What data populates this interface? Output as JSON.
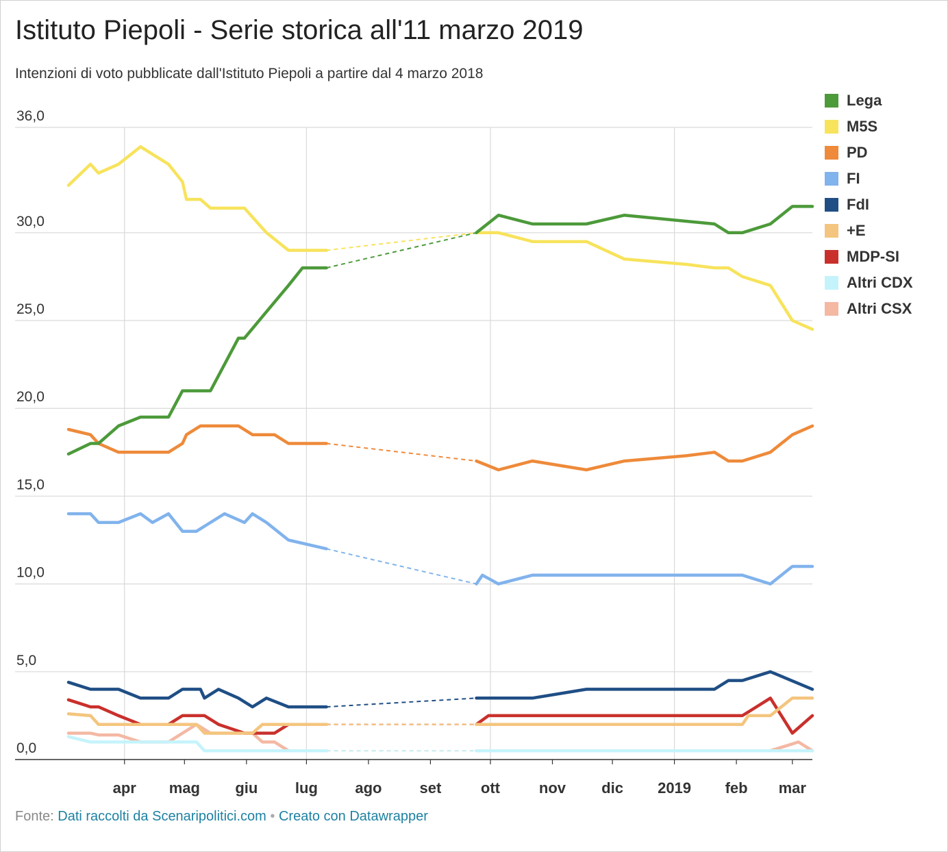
{
  "title": "Istituto Piepoli - Serie storica all'11 marzo 2019",
  "subtitle": "Intenzioni di voto pubblicate dall'Istituto Piepoli a partire dal 4 marzo 2018",
  "footer": {
    "source_prefix": "Fonte:",
    "source_link": "Dati raccolti da Scenaripolitici.com",
    "separator": "•",
    "credit_link": "Creato con Datawrapper"
  },
  "chart_data": {
    "type": "line",
    "title": "Istituto Piepoli - Serie storica all'11 marzo 2019",
    "subtitle": "Intenzioni di voto pubblicate dall'Istituto Piepoli a partire dal 4 marzo 2018",
    "xlabel": "",
    "ylabel": "",
    "ylim": [
      0,
      36
    ],
    "y_ticks": [
      0,
      5,
      10,
      15,
      20,
      25,
      30,
      36
    ],
    "y_tick_labels": [
      "0,0",
      "5,0",
      "10,0",
      "15,0",
      "20,0",
      "25,0",
      "30,0",
      "36,0"
    ],
    "x_range": [
      "2018-03-04",
      "2019-03-11"
    ],
    "x_ticks": [
      {
        "date": "2018-04-01",
        "label": "apr"
      },
      {
        "date": "2018-05-01",
        "label": "mag"
      },
      {
        "date": "2018-06-01",
        "label": "giu"
      },
      {
        "date": "2018-07-01",
        "label": "lug"
      },
      {
        "date": "2018-08-01",
        "label": "ago"
      },
      {
        "date": "2018-09-01",
        "label": "set"
      },
      {
        "date": "2018-10-01",
        "label": "ott"
      },
      {
        "date": "2018-11-01",
        "label": "nov"
      },
      {
        "date": "2018-12-01",
        "label": "dic"
      },
      {
        "date": "2019-01-01",
        "label": "2019"
      },
      {
        "date": "2019-02-01",
        "label": "feb"
      },
      {
        "date": "2019-03-01",
        "label": "mar"
      }
    ],
    "vertical_grid_dates": [
      "2018-04-01",
      "2018-07-01",
      "2018-10-01",
      "2019-01-01"
    ],
    "gap": {
      "from": "2018-07-11",
      "to": "2018-09-24",
      "style": "dashed"
    },
    "grid": true,
    "legend_position": "right",
    "series": [
      {
        "name": "Lega",
        "color": "#4c9a3a",
        "points": [
          [
            "2018-03-04",
            17.4
          ],
          [
            "2018-03-15",
            18
          ],
          [
            "2018-03-19",
            18
          ],
          [
            "2018-03-29",
            19
          ],
          [
            "2018-04-09",
            19.5
          ],
          [
            "2018-04-23",
            19.5
          ],
          [
            "2018-04-30",
            21
          ],
          [
            "2018-05-14",
            21
          ],
          [
            "2018-05-28",
            24
          ],
          [
            "2018-05-31",
            24
          ],
          [
            "2018-06-11",
            25.5
          ],
          [
            "2018-06-22",
            27
          ],
          [
            "2018-06-29",
            28
          ],
          [
            "2018-07-11",
            28
          ],
          [
            "2018-09-24",
            30
          ],
          [
            "2018-10-05",
            31
          ],
          [
            "2018-10-22",
            30.5
          ],
          [
            "2018-11-18",
            30.5
          ],
          [
            "2018-12-07",
            31
          ],
          [
            "2019-01-21",
            30.5
          ],
          [
            "2019-01-28",
            30
          ],
          [
            "2019-02-04",
            30
          ],
          [
            "2019-02-18",
            30.5
          ],
          [
            "2019-03-01",
            31.5
          ],
          [
            "2019-03-11",
            31.5
          ]
        ]
      },
      {
        "name": "M5S",
        "color": "#f7e35c",
        "points": [
          [
            "2018-03-04",
            32.7
          ],
          [
            "2018-03-15",
            33.9
          ],
          [
            "2018-03-19",
            33.4
          ],
          [
            "2018-03-29",
            33.9
          ],
          [
            "2018-04-09",
            34.9
          ],
          [
            "2018-04-23",
            33.9
          ],
          [
            "2018-04-30",
            32.9
          ],
          [
            "2018-05-02",
            31.9
          ],
          [
            "2018-05-09",
            31.9
          ],
          [
            "2018-05-14",
            31.4
          ],
          [
            "2018-05-31",
            31.4
          ],
          [
            "2018-06-11",
            30
          ],
          [
            "2018-06-22",
            29
          ],
          [
            "2018-07-11",
            29
          ],
          [
            "2018-09-24",
            30
          ],
          [
            "2018-10-05",
            30
          ],
          [
            "2018-10-22",
            29.5
          ],
          [
            "2018-11-18",
            29.5
          ],
          [
            "2018-12-07",
            28.5
          ],
          [
            "2019-01-07",
            28.2
          ],
          [
            "2019-01-21",
            28
          ],
          [
            "2019-01-28",
            28
          ],
          [
            "2019-02-04",
            27.5
          ],
          [
            "2019-02-18",
            27
          ],
          [
            "2019-03-01",
            25
          ],
          [
            "2019-03-11",
            24.5
          ]
        ]
      },
      {
        "name": "PD",
        "color": "#ee8a3a",
        "points": [
          [
            "2018-03-04",
            18.8
          ],
          [
            "2018-03-15",
            18.5
          ],
          [
            "2018-03-19",
            18
          ],
          [
            "2018-03-29",
            17.5
          ],
          [
            "2018-04-23",
            17.5
          ],
          [
            "2018-04-30",
            18
          ],
          [
            "2018-05-02",
            18.5
          ],
          [
            "2018-05-09",
            19
          ],
          [
            "2018-05-28",
            19
          ],
          [
            "2018-06-04",
            18.5
          ],
          [
            "2018-06-15",
            18.5
          ],
          [
            "2018-06-22",
            18
          ],
          [
            "2018-07-11",
            18
          ],
          [
            "2018-09-24",
            17
          ],
          [
            "2018-10-05",
            16.5
          ],
          [
            "2018-10-22",
            17
          ],
          [
            "2018-11-18",
            16.5
          ],
          [
            "2018-12-07",
            17
          ],
          [
            "2019-01-07",
            17.3
          ],
          [
            "2019-01-21",
            17.5
          ],
          [
            "2019-01-28",
            17
          ],
          [
            "2019-02-04",
            17
          ],
          [
            "2019-02-18",
            17.5
          ],
          [
            "2019-03-01",
            18.5
          ],
          [
            "2019-03-11",
            19
          ]
        ]
      },
      {
        "name": "FI",
        "color": "#81b3ec",
        "points": [
          [
            "2018-03-04",
            14
          ],
          [
            "2018-03-15",
            14
          ],
          [
            "2018-03-19",
            13.5
          ],
          [
            "2018-03-29",
            13.5
          ],
          [
            "2018-04-09",
            14
          ],
          [
            "2018-04-15",
            13.5
          ],
          [
            "2018-04-23",
            14
          ],
          [
            "2018-04-30",
            13
          ],
          [
            "2018-05-07",
            13
          ],
          [
            "2018-05-14",
            13.5
          ],
          [
            "2018-05-21",
            14
          ],
          [
            "2018-05-31",
            13.5
          ],
          [
            "2018-06-04",
            14
          ],
          [
            "2018-06-11",
            13.5
          ],
          [
            "2018-06-22",
            12.5
          ],
          [
            "2018-07-11",
            12
          ],
          [
            "2018-09-24",
            10
          ],
          [
            "2018-09-27",
            10.5
          ],
          [
            "2018-10-05",
            10
          ],
          [
            "2018-10-22",
            10.5
          ],
          [
            "2019-02-04",
            10.5
          ],
          [
            "2019-02-18",
            10
          ],
          [
            "2019-03-01",
            11
          ],
          [
            "2019-03-11",
            11
          ]
        ]
      },
      {
        "name": "FdI",
        "color": "#1f4e85",
        "points": [
          [
            "2018-03-04",
            4.4
          ],
          [
            "2018-03-15",
            4
          ],
          [
            "2018-03-29",
            4
          ],
          [
            "2018-04-09",
            3.5
          ],
          [
            "2018-04-23",
            3.5
          ],
          [
            "2018-04-30",
            4
          ],
          [
            "2018-05-09",
            4
          ],
          [
            "2018-05-11",
            3.5
          ],
          [
            "2018-05-18",
            4
          ],
          [
            "2018-05-28",
            3.5
          ],
          [
            "2018-06-04",
            3
          ],
          [
            "2018-06-11",
            3.5
          ],
          [
            "2018-06-22",
            3
          ],
          [
            "2018-07-11",
            3
          ],
          [
            "2018-09-24",
            3.5
          ],
          [
            "2018-10-22",
            3.5
          ],
          [
            "2018-11-18",
            4
          ],
          [
            "2019-01-21",
            4
          ],
          [
            "2019-01-28",
            4.5
          ],
          [
            "2019-02-04",
            4.5
          ],
          [
            "2019-02-18",
            5
          ],
          [
            "2019-03-11",
            4
          ]
        ]
      },
      {
        "name": "+E",
        "color": "#f4c57e",
        "points": [
          [
            "2018-03-04",
            2.6
          ],
          [
            "2018-03-15",
            2.5
          ],
          [
            "2018-03-19",
            2
          ],
          [
            "2018-04-23",
            2
          ],
          [
            "2018-05-07",
            2
          ],
          [
            "2018-05-11",
            1.5
          ],
          [
            "2018-06-04",
            1.5
          ],
          [
            "2018-06-09",
            2
          ],
          [
            "2018-07-11",
            2
          ],
          [
            "2018-09-24",
            2
          ],
          [
            "2019-02-04",
            2
          ],
          [
            "2019-02-07",
            2.5
          ],
          [
            "2019-02-18",
            2.5
          ],
          [
            "2019-03-01",
            3.5
          ],
          [
            "2019-03-11",
            3.5
          ]
        ]
      },
      {
        "name": "MDP-SI",
        "color": "#c9302c",
        "points": [
          [
            "2018-03-04",
            3.4
          ],
          [
            "2018-03-15",
            3
          ],
          [
            "2018-03-19",
            3
          ],
          [
            "2018-03-29",
            2.5
          ],
          [
            "2018-04-09",
            2
          ],
          [
            "2018-04-23",
            2
          ],
          [
            "2018-04-30",
            2.5
          ],
          [
            "2018-05-11",
            2.5
          ],
          [
            "2018-05-18",
            2
          ],
          [
            "2018-05-31",
            1.5
          ],
          [
            "2018-06-15",
            1.5
          ],
          [
            "2018-06-22",
            2
          ],
          [
            "2018-07-11",
            2
          ],
          [
            "2018-09-24",
            2
          ],
          [
            "2018-09-30",
            2.5
          ],
          [
            "2019-02-04",
            2.5
          ],
          [
            "2019-02-11",
            3
          ],
          [
            "2019-02-18",
            3.5
          ],
          [
            "2019-03-01",
            1.5
          ],
          [
            "2019-03-11",
            2.5
          ]
        ]
      },
      {
        "name": "Altri CDX",
        "color": "#c5f3fb",
        "points": [
          [
            "2018-03-04",
            1.3
          ],
          [
            "2018-03-15",
            1
          ],
          [
            "2018-04-09",
            1
          ],
          [
            "2018-05-07",
            1
          ],
          [
            "2018-05-11",
            0.5
          ],
          [
            "2018-07-11",
            0.5
          ],
          [
            "2018-09-24",
            0.5
          ],
          [
            "2019-03-11",
            0.5
          ]
        ]
      },
      {
        "name": "Altri CSX",
        "color": "#f4b8a3",
        "points": [
          [
            "2018-03-04",
            1.5
          ],
          [
            "2018-03-15",
            1.5
          ],
          [
            "2018-03-19",
            1.4
          ],
          [
            "2018-03-29",
            1.4
          ],
          [
            "2018-04-09",
            1
          ],
          [
            "2018-04-23",
            1
          ],
          [
            "2018-04-30",
            1.5
          ],
          [
            "2018-05-07",
            2
          ],
          [
            "2018-05-14",
            1.5
          ],
          [
            "2018-06-04",
            1.5
          ],
          [
            "2018-06-09",
            1
          ],
          [
            "2018-06-15",
            1
          ],
          [
            "2018-06-22",
            0.5
          ],
          [
            "2018-07-11",
            0.5
          ],
          [
            "2018-09-24",
            0.5
          ],
          [
            "2019-02-18",
            0.5
          ],
          [
            "2019-03-04",
            1
          ],
          [
            "2019-03-11",
            0.5
          ]
        ]
      }
    ]
  }
}
